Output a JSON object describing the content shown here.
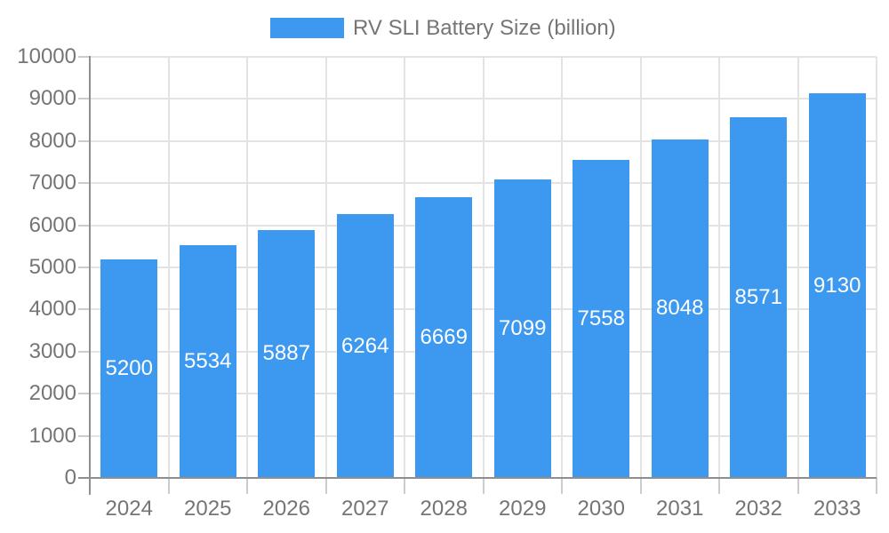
{
  "legend": {
    "label": "RV SLI Battery Size (billion)"
  },
  "chart_data": {
    "type": "bar",
    "title": "RV SLI Battery Size (billion)",
    "categories": [
      "2024",
      "2025",
      "2026",
      "2027",
      "2028",
      "2029",
      "2030",
      "2031",
      "2032",
      "2033"
    ],
    "values": [
      5200,
      5534,
      5887,
      6264,
      6669,
      7099,
      7558,
      8048,
      8571,
      9130
    ],
    "series": [
      {
        "name": "RV SLI Battery Size (billion)",
        "values": [
          5200,
          5534,
          5887,
          6264,
          6669,
          7099,
          7558,
          8048,
          8571,
          9130
        ]
      }
    ],
    "xlabel": "",
    "ylabel": "",
    "ylim": [
      0,
      10000
    ],
    "ytick_step": 1000,
    "yticks": [
      "0",
      "1000",
      "2000",
      "3000",
      "4000",
      "5000",
      "6000",
      "7000",
      "8000",
      "9000",
      "10000"
    ],
    "grid": true,
    "legend_position": "top",
    "value_labels": "inside-center",
    "colors": {
      "bar": "#3D99F0",
      "value_label": "#FFFFFF",
      "axis_line": "#8F8F8F",
      "gridline": "#E3E3E3",
      "tick": "#CCCCCC",
      "text": "#757575",
      "background": "#FFFFFF"
    }
  }
}
